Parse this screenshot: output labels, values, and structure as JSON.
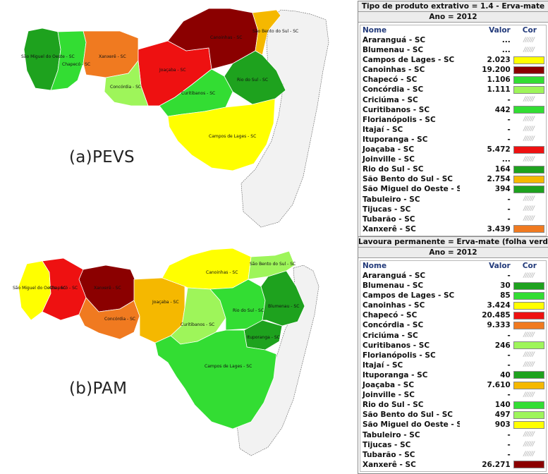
{
  "colors": {
    "darkred": "#8b0000",
    "red": "#ee1111",
    "orange": "#f07a20",
    "amber": "#f5b800",
    "yellow": "#ffff00",
    "lightgreen": "#9ef55a",
    "green": "#33dd33",
    "darkgreen": "#1ea21e",
    "gray_fill": "#f2f2f2",
    "outline": "#666666"
  },
  "map_a": {
    "caption": "(a)PEVS",
    "regions": [
      {
        "label": "São Miguel do Oeste - SC",
        "color": "darkgreen"
      },
      {
        "label": "Chapecó - SC",
        "color": "green"
      },
      {
        "label": "Xanxerê - SC",
        "color": "orange"
      },
      {
        "label": "Joaçaba - SC",
        "color": "red"
      },
      {
        "label": "Concórdia - SC",
        "color": "lightgreen"
      },
      {
        "label": "Canoinhas - SC",
        "color": "darkred"
      },
      {
        "label": "São Bento do Sul - SC",
        "color": "amber"
      },
      {
        "label": "Curitibanos - SC",
        "color": "green"
      },
      {
        "label": "Rio do Sul - SC",
        "color": "darkgreen"
      },
      {
        "label": "Campos de Lages - SC",
        "color": "yellow"
      }
    ]
  },
  "map_b": {
    "caption": "(b)PAM",
    "regions": [
      {
        "label": "São Miguel do Oeste - SC",
        "color": "yellow"
      },
      {
        "label": "Chapecó - SC",
        "color": "red"
      },
      {
        "label": "Xanxerê - SC",
        "color": "darkred"
      },
      {
        "label": "Concórdia - SC",
        "color": "orange"
      },
      {
        "label": "Joaçaba - SC",
        "color": "amber"
      },
      {
        "label": "Canoinhas - SC",
        "color": "yellow"
      },
      {
        "label": "São Bento do Sul - SC",
        "color": "lightgreen"
      },
      {
        "label": "Curitibanos - SC",
        "color": "lightgreen"
      },
      {
        "label": "Rio do Sul - SC",
        "color": "green"
      },
      {
        "label": "Blumenau - SC",
        "color": "darkgreen"
      },
      {
        "label": "Ituporanga - SC",
        "color": "darkgreen"
      },
      {
        "label": "Campos de Lages - SC",
        "color": "green"
      }
    ]
  },
  "table_a": {
    "title": "Tipo de produto extrativo = 1.4 - Erva-mate",
    "year": "Ano = 2012",
    "col_name": "Nome",
    "col_value": "Valor",
    "col_color": "Cor",
    "rows": [
      {
        "name": "Araranguá - SC",
        "value": "...",
        "color": null
      },
      {
        "name": "Blumenau - SC",
        "value": "...",
        "color": null
      },
      {
        "name": "Campos de Lages - SC",
        "value": "2.023",
        "color": "yellow"
      },
      {
        "name": "Canoinhas - SC",
        "value": "19.200",
        "color": "darkred"
      },
      {
        "name": "Chapecó - SC",
        "value": "1.106",
        "color": "green"
      },
      {
        "name": "Concórdia - SC",
        "value": "1.111",
        "color": "lightgreen"
      },
      {
        "name": "Criciúma - SC",
        "value": "-",
        "color": null
      },
      {
        "name": "Curitibanos - SC",
        "value": "442",
        "color": "green"
      },
      {
        "name": "Florianópolis - SC",
        "value": "-",
        "color": null
      },
      {
        "name": "Itajaí - SC",
        "value": "-",
        "color": null
      },
      {
        "name": "Ituporanga - SC",
        "value": "-",
        "color": null
      },
      {
        "name": "Joaçaba - SC",
        "value": "5.472",
        "color": "red"
      },
      {
        "name": "Joinville - SC",
        "value": "...",
        "color": null
      },
      {
        "name": "Rio do Sul - SC",
        "value": "164",
        "color": "darkgreen"
      },
      {
        "name": "São Bento do Sul - SC",
        "value": "2.754",
        "color": "amber"
      },
      {
        "name": "São Miguel do Oeste - SC",
        "value": "394",
        "color": "darkgreen"
      },
      {
        "name": "Tabuleiro - SC",
        "value": "-",
        "color": null
      },
      {
        "name": "Tijucas - SC",
        "value": "-",
        "color": null
      },
      {
        "name": "Tubarão - SC",
        "value": "-",
        "color": null
      },
      {
        "name": "Xanxerê - SC",
        "value": "3.439",
        "color": "orange"
      }
    ]
  },
  "table_b": {
    "title": "Lavoura permanente = Erva-mate (folha verde)",
    "year": "Ano = 2012",
    "col_name": "Nome",
    "col_value": "Valor",
    "col_color": "Cor",
    "rows": [
      {
        "name": "Araranguá - SC",
        "value": "-",
        "color": null
      },
      {
        "name": "Blumenau - SC",
        "value": "30",
        "color": "darkgreen"
      },
      {
        "name": "Campos de Lages - SC",
        "value": "85",
        "color": "green"
      },
      {
        "name": "Canoinhas - SC",
        "value": "3.424",
        "color": "yellow"
      },
      {
        "name": "Chapecó - SC",
        "value": "20.485",
        "color": "red"
      },
      {
        "name": "Concórdia - SC",
        "value": "9.333",
        "color": "orange"
      },
      {
        "name": "Criciúma - SC",
        "value": "-",
        "color": null
      },
      {
        "name": "Curitibanos - SC",
        "value": "246",
        "color": "lightgreen"
      },
      {
        "name": "Florianópolis - SC",
        "value": "-",
        "color": null
      },
      {
        "name": "Itajaí - SC",
        "value": "-",
        "color": null
      },
      {
        "name": "Ituporanga - SC",
        "value": "40",
        "color": "darkgreen"
      },
      {
        "name": "Joaçaba - SC",
        "value": "7.610",
        "color": "amber"
      },
      {
        "name": "Joinville - SC",
        "value": "-",
        "color": null
      },
      {
        "name": "Rio do Sul - SC",
        "value": "140",
        "color": "green"
      },
      {
        "name": "São Bento do Sul - SC",
        "value": "497",
        "color": "lightgreen"
      },
      {
        "name": "São Miguel do Oeste - SC",
        "value": "903",
        "color": "yellow"
      },
      {
        "name": "Tabuleiro - SC",
        "value": "-",
        "color": null
      },
      {
        "name": "Tijucas - SC",
        "value": "-",
        "color": null
      },
      {
        "name": "Tubarão - SC",
        "value": "-",
        "color": null
      },
      {
        "name": "Xanxerê - SC",
        "value": "26.271",
        "color": "darkred"
      }
    ]
  }
}
